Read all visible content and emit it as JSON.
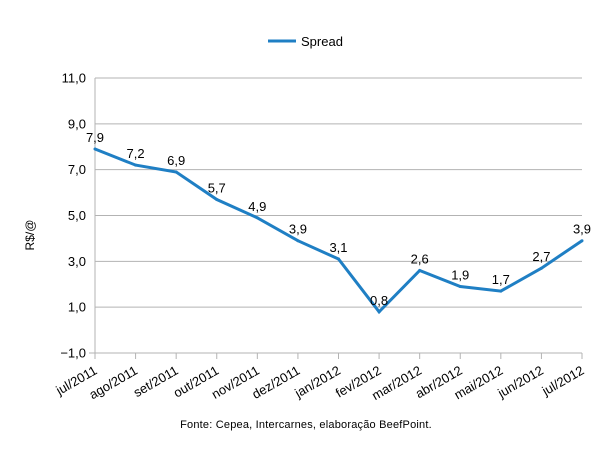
{
  "chart_data": {
    "type": "line",
    "categories": [
      "jul/2011",
      "ago/2011",
      "set/2011",
      "out/2011",
      "nov/2011",
      "dez/2011",
      "jan/2012",
      "fev/2012",
      "mar/2012",
      "abr/2012",
      "mai/2012",
      "jun/2012",
      "jul/2012"
    ],
    "series": [
      {
        "name": "Spread",
        "values": [
          7.9,
          7.2,
          6.9,
          5.7,
          4.9,
          3.9,
          3.1,
          0.8,
          2.6,
          1.9,
          1.7,
          2.7,
          3.9
        ],
        "value_labels": [
          "7,9",
          "7,2",
          "6,9",
          "5,7",
          "4,9",
          "3,9",
          "3,1",
          "0,8",
          "2,6",
          "1,9",
          "1,7",
          "2,7",
          "3,9"
        ],
        "color": "#1f7fc4"
      }
    ],
    "ylabel": "R$/@",
    "ylim": [
      -1.0,
      11.0
    ],
    "yticks": [
      -1.0,
      1.0,
      3.0,
      5.0,
      7.0,
      9.0,
      11.0
    ],
    "ytick_labels": [
      "−1,0",
      "1,0",
      "3,0",
      "5,0",
      "7,0",
      "9,0",
      "11,0"
    ],
    "grid": true,
    "legend_position": "top-center"
  },
  "source": "Fonte: Cepea, Intercarnes, elaboração BeefPoint."
}
